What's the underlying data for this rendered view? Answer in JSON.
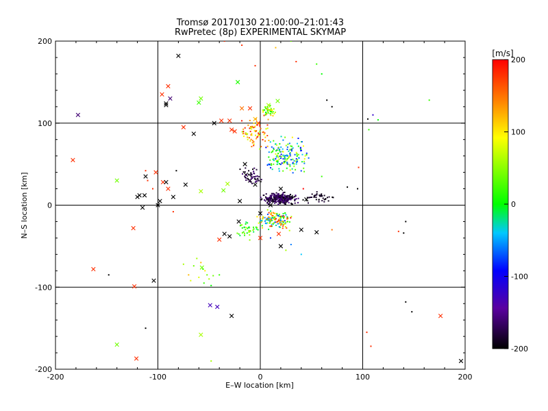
{
  "title": "Tromsø 20170130 21:00:00–21:01:43",
  "subtitle": "RwPretec (8p) EXPERIMENTAL SKYMAP",
  "chart_data": {
    "type": "scatter",
    "title": "Tromsø 20170130 21:00:00–21:01:43",
    "subtitle": "RwPretec (8p) EXPERIMENTAL SKYMAP",
    "xlabel": "E–W location [km]",
    "ylabel": "N–S location [km]",
    "xlim": [
      -200,
      200
    ],
    "ylim": [
      -200,
      200
    ],
    "xticks": [
      -200,
      -100,
      0,
      100,
      200
    ],
    "yticks": [
      -200,
      -100,
      0,
      100,
      200
    ],
    "grid": "major ticks at ±100 and 0",
    "colorbar": {
      "label": "[m/s]",
      "min": -200,
      "max": 200,
      "ticks": [
        200,
        100,
        0,
        -100,
        -200
      ],
      "colors": [
        "#000000",
        "#5a00a0",
        "#0000ff",
        "#00c8ff",
        "#00ff00",
        "#ffff00",
        "#ff8000",
        "#ff0000"
      ]
    },
    "series": [
      {
        "marker": "x",
        "points": [
          [
            -80,
            182,
            -200
          ],
          [
            -22,
            150,
            10
          ],
          [
            -140,
            30,
            40
          ],
          [
            -178,
            110,
            -160
          ],
          [
            -92,
            124,
            -200
          ],
          [
            -96,
            135,
            180
          ],
          [
            -88,
            130,
            -160
          ],
          [
            -90,
            145,
            180
          ],
          [
            -58,
            130,
            40
          ],
          [
            -60,
            125,
            20
          ],
          [
            -92,
            122,
            -200
          ],
          [
            -75,
            95,
            180
          ],
          [
            -65,
            87,
            -200
          ],
          [
            -45,
            100,
            -200
          ],
          [
            -30,
            103,
            180
          ],
          [
            -38,
            103,
            180
          ],
          [
            -28,
            92,
            180
          ],
          [
            -25,
            90,
            180
          ],
          [
            -183,
            55,
            180
          ],
          [
            -102,
            40,
            180
          ],
          [
            -112,
            35,
            -200
          ],
          [
            -95,
            28,
            180
          ],
          [
            -92,
            28,
            -200
          ],
          [
            -58,
            17,
            60
          ],
          [
            -73,
            25,
            -200
          ],
          [
            -36,
            18,
            40
          ],
          [
            -32,
            26,
            60
          ],
          [
            -90,
            20,
            180
          ],
          [
            -120,
            10,
            -200
          ],
          [
            -118,
            12,
            -200
          ],
          [
            -113,
            12,
            -200
          ],
          [
            -100,
            0,
            -200
          ],
          [
            -115,
            -3,
            -200
          ],
          [
            -98,
            5,
            -200
          ],
          [
            -85,
            10,
            -200
          ],
          [
            -124,
            -28,
            180
          ],
          [
            -163,
            -78,
            180
          ],
          [
            -140,
            -170,
            40
          ],
          [
            -123,
            -99,
            180
          ],
          [
            -121,
            -187,
            180
          ],
          [
            -104,
            -92,
            -200
          ],
          [
            -58,
            -158,
            60
          ],
          [
            -57,
            -76,
            40
          ],
          [
            -49,
            -122,
            -130
          ],
          [
            -42,
            -124,
            -130
          ],
          [
            -28,
            -135,
            -200
          ],
          [
            -35,
            -35,
            -200
          ],
          [
            -30,
            -38,
            -200
          ],
          [
            -40,
            -42,
            180
          ],
          [
            0,
            -40,
            180
          ],
          [
            -21,
            -20,
            -200
          ],
          [
            -20,
            5,
            -200
          ],
          [
            -15,
            50,
            -200
          ],
          [
            -10,
            30,
            -200
          ],
          [
            -14,
            37,
            -200
          ],
          [
            -5,
            25,
            -200
          ],
          [
            20,
            20,
            -200
          ],
          [
            30,
            10,
            -200
          ],
          [
            -2,
            100,
            180
          ],
          [
            -18,
            118,
            150
          ],
          [
            -10,
            118,
            180
          ],
          [
            8,
            122,
            60
          ],
          [
            17,
            127,
            40
          ],
          [
            -5,
            105,
            120
          ],
          [
            20,
            5,
            -200
          ],
          [
            8,
            5,
            -200
          ],
          [
            0,
            -10,
            -200
          ],
          [
            18,
            -35,
            180
          ],
          [
            40,
            -30,
            -200
          ],
          [
            20,
            -50,
            -200
          ],
          [
            55,
            -33,
            -200
          ],
          [
            176,
            -135,
            180
          ],
          [
            196,
            -190,
            -200
          ],
          [
            10,
            0,
            -200
          ],
          [
            45,
            7,
            -200
          ]
        ]
      },
      {
        "marker": "dot",
        "points": [
          [
            -65,
            -74,
            40
          ],
          [
            -62,
            -65,
            60
          ],
          [
            -58,
            -70,
            120
          ],
          [
            -56,
            -78,
            20
          ],
          [
            -52,
            -85,
            40
          ],
          [
            -50,
            -90,
            60
          ],
          [
            -55,
            -95,
            20
          ],
          [
            -48,
            -98,
            0
          ],
          [
            -75,
            -72,
            60
          ],
          [
            -60,
            -88,
            80
          ],
          [
            -54,
            -80,
            100
          ],
          [
            -46,
            -86,
            40
          ],
          [
            -40,
            -85,
            20
          ],
          [
            -70,
            -85,
            120
          ],
          [
            -68,
            -92,
            80
          ],
          [
            10,
            -40,
            -80
          ],
          [
            30,
            -48,
            -60
          ],
          [
            40,
            -60,
            -40
          ],
          [
            25,
            -55,
            60
          ],
          [
            70,
            -30,
            150
          ],
          [
            42,
            20,
            200
          ],
          [
            60,
            35,
            20
          ],
          [
            85,
            22,
            -200
          ],
          [
            95,
            20,
            -200
          ],
          [
            105,
            105,
            -200
          ],
          [
            106,
            92,
            20
          ],
          [
            110,
            110,
            -120
          ],
          [
            115,
            104,
            0
          ],
          [
            165,
            128,
            20
          ],
          [
            60,
            160,
            0
          ],
          [
            65,
            128,
            -200
          ],
          [
            70,
            120,
            -200
          ],
          [
            148,
            -130,
            -200
          ],
          [
            142,
            -118,
            -200
          ],
          [
            135,
            -32,
            180
          ],
          [
            142,
            -20,
            -200
          ],
          [
            140,
            -34,
            -200
          ],
          [
            108,
            -172,
            180
          ],
          [
            104,
            -155,
            180
          ],
          [
            96,
            46,
            180
          ],
          [
            -112,
            -150,
            -200
          ],
          [
            -148,
            -85,
            -200
          ],
          [
            -48,
            -190,
            60
          ],
          [
            -82,
            42,
            -200
          ],
          [
            -110,
            30,
            180
          ],
          [
            -112,
            42,
            180
          ],
          [
            -105,
            20,
            180
          ],
          [
            -85,
            -8,
            180
          ],
          [
            -18,
            195,
            180
          ],
          [
            -35,
            200,
            180
          ],
          [
            15,
            192,
            120
          ],
          [
            35,
            175,
            180
          ],
          [
            30,
            200,
            40
          ],
          [
            -5,
            170,
            180
          ],
          [
            55,
            172,
            20
          ]
        ]
      }
    ]
  }
}
